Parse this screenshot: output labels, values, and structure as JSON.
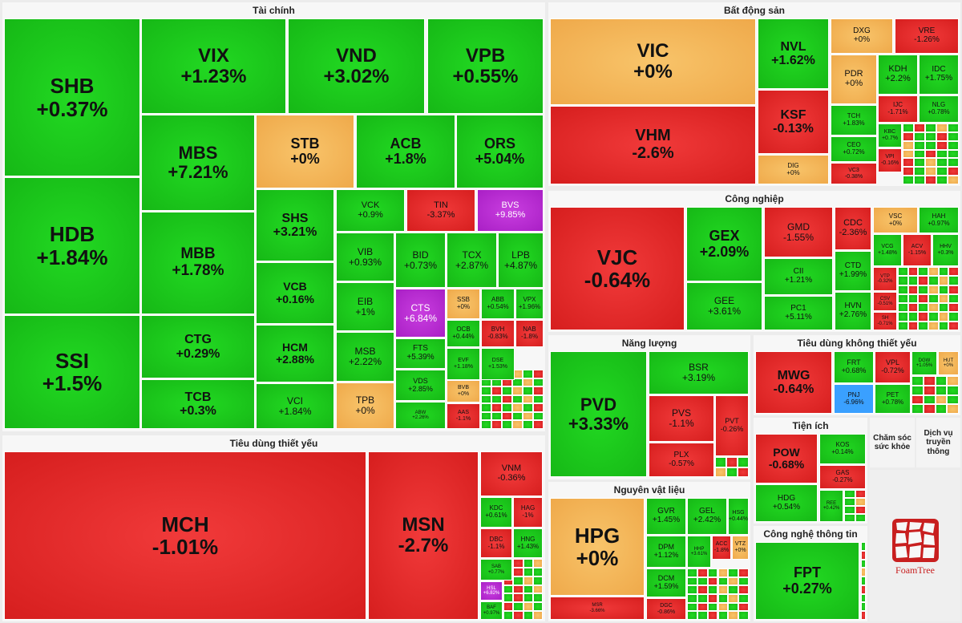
{
  "colors": {
    "up": "#16b816",
    "down": "#d61e1e",
    "flat": "#efa94a",
    "ceiling": "#a91fc5",
    "floor": "#3aa0ff"
  },
  "sectors": [
    {
      "id": "tai-chinh",
      "title": "Tài chính",
      "tiles": [
        {
          "t": "SHB",
          "v": "+0.37%",
          "c": "g"
        },
        {
          "t": "HDB",
          "v": "+1.84%",
          "c": "g"
        },
        {
          "t": "SSI",
          "v": "+1.5%",
          "c": "g"
        },
        {
          "t": "VIX",
          "v": "+1.23%",
          "c": "g"
        },
        {
          "t": "VND",
          "v": "+3.02%",
          "c": "g"
        },
        {
          "t": "VPB",
          "v": "+0.55%",
          "c": "g"
        },
        {
          "t": "MBS",
          "v": "+7.21%",
          "c": "g"
        },
        {
          "t": "STB",
          "v": "+0%",
          "c": "y"
        },
        {
          "t": "ACB",
          "v": "+1.8%",
          "c": "g"
        },
        {
          "t": "ORS",
          "v": "+5.04%",
          "c": "g"
        },
        {
          "t": "MBB",
          "v": "+1.78%",
          "c": "g"
        },
        {
          "t": "CTG",
          "v": "+0.29%",
          "c": "g"
        },
        {
          "t": "TCB",
          "v": "+0.3%",
          "c": "g"
        },
        {
          "t": "SHS",
          "v": "+3.21%",
          "c": "g"
        },
        {
          "t": "VCB",
          "v": "+0.16%",
          "c": "g"
        },
        {
          "t": "HCM",
          "v": "+2.88%",
          "c": "g"
        },
        {
          "t": "VCI",
          "v": "+1.84%",
          "c": "g"
        },
        {
          "t": "VCK",
          "v": "+0.9%",
          "c": "g"
        },
        {
          "t": "TIN",
          "v": "-3.37%",
          "c": "r"
        },
        {
          "t": "BVS",
          "v": "+9.85%",
          "c": "p"
        },
        {
          "t": "VIB",
          "v": "+0.93%",
          "c": "g"
        },
        {
          "t": "BID",
          "v": "+0.73%",
          "c": "g"
        },
        {
          "t": "TCX",
          "v": "+2.87%",
          "c": "g"
        },
        {
          "t": "LPB",
          "v": "+4.87%",
          "c": "g"
        },
        {
          "t": "EIB",
          "v": "+1%",
          "c": "g"
        },
        {
          "t": "CTS",
          "v": "+6.84%",
          "c": "p"
        },
        {
          "t": "SSB",
          "v": "+0%",
          "c": "y"
        },
        {
          "t": "ABB",
          "v": "+0.54%",
          "c": "g"
        },
        {
          "t": "VPX",
          "v": "+1.96%",
          "c": "g"
        },
        {
          "t": "OCB",
          "v": "+0.44%",
          "c": "g"
        },
        {
          "t": "BVH",
          "v": "-0.83%",
          "c": "r"
        },
        {
          "t": "NAB",
          "v": "-1.8%",
          "c": "r"
        },
        {
          "t": "MSB",
          "v": "+2.22%",
          "c": "g"
        },
        {
          "t": "FTS",
          "v": "+5.39%",
          "c": "g"
        },
        {
          "t": "TPB",
          "v": "+0%",
          "c": "y"
        },
        {
          "t": "VDS",
          "v": "+2.85%",
          "c": "g"
        },
        {
          "t": "BVB",
          "v": "+0%",
          "c": "y"
        },
        {
          "t": "AAS",
          "v": "-1.1%",
          "c": "r"
        },
        {
          "t": "EVF",
          "v": "+1.18%",
          "c": "g"
        },
        {
          "t": "DSE",
          "v": "+1.53%",
          "c": "g"
        },
        {
          "t": "ABW",
          "v": "+2.26%",
          "c": "g"
        }
      ]
    },
    {
      "id": "bat-dong-san",
      "title": "Bất động sản",
      "tiles": [
        {
          "t": "VIC",
          "v": "+0%",
          "c": "y"
        },
        {
          "t": "VHM",
          "v": "-2.6%",
          "c": "r"
        },
        {
          "t": "NVL",
          "v": "+1.62%",
          "c": "g"
        },
        {
          "t": "KSF",
          "v": "-0.13%",
          "c": "r"
        },
        {
          "t": "DIG",
          "v": "+0%",
          "c": "y"
        },
        {
          "t": "DXG",
          "v": "+0%",
          "c": "y"
        },
        {
          "t": "VRE",
          "v": "-1.26%",
          "c": "r"
        },
        {
          "t": "PDR",
          "v": "+0%",
          "c": "y"
        },
        {
          "t": "KDH",
          "v": "+2.2%",
          "c": "g"
        },
        {
          "t": "IDC",
          "v": "+1.75%",
          "c": "g"
        },
        {
          "t": "TCH",
          "v": "+1.83%",
          "c": "g"
        },
        {
          "t": "IJC",
          "v": "-1.71%",
          "c": "r"
        },
        {
          "t": "NLG",
          "v": "+0.78%",
          "c": "g"
        },
        {
          "t": "CEO",
          "v": "+0.72%",
          "c": "g"
        },
        {
          "t": "KBC",
          "v": "+0.7%",
          "c": "g"
        },
        {
          "t": "VPI",
          "v": "-0.16%",
          "c": "r"
        },
        {
          "t": "VC3",
          "v": "-0.38%",
          "c": "r"
        }
      ]
    },
    {
      "id": "cong-nghiep",
      "title": "Công nghiệp",
      "tiles": [
        {
          "t": "VJC",
          "v": "-0.64%",
          "c": "r"
        },
        {
          "t": "GEX",
          "v": "+2.09%",
          "c": "g"
        },
        {
          "t": "GEE",
          "v": "+3.61%",
          "c": "g"
        },
        {
          "t": "GMD",
          "v": "-1.55%",
          "c": "r"
        },
        {
          "t": "CII",
          "v": "+1.21%",
          "c": "g"
        },
        {
          "t": "PC1",
          "v": "+5.11%",
          "c": "g"
        },
        {
          "t": "CDC",
          "v": "-2.36%",
          "c": "r"
        },
        {
          "t": "CTD",
          "v": "+1.99%",
          "c": "g"
        },
        {
          "t": "HVN",
          "v": "+2.76%",
          "c": "g"
        },
        {
          "t": "VSC",
          "v": "+0%",
          "c": "y"
        },
        {
          "t": "HAH",
          "v": "+0.97%",
          "c": "g"
        },
        {
          "t": "VCG",
          "v": "+1.48%",
          "c": "g"
        },
        {
          "t": "ACV",
          "v": "-1.15%",
          "c": "r"
        },
        {
          "t": "HHV",
          "v": "+0.3%",
          "c": "g"
        },
        {
          "t": "VTP",
          "v": "-0.32%",
          "c": "r"
        },
        {
          "t": "CSV",
          "v": "-0.51%",
          "c": "r"
        },
        {
          "t": "SH",
          "v": "-0.71%",
          "c": "r"
        }
      ]
    },
    {
      "id": "nang-luong",
      "title": "Năng lượng",
      "tiles": [
        {
          "t": "PVD",
          "v": "+3.33%",
          "c": "g"
        },
        {
          "t": "BSR",
          "v": "+3.19%",
          "c": "g"
        },
        {
          "t": "PVS",
          "v": "-1.1%",
          "c": "r"
        },
        {
          "t": "PVT",
          "v": "-0.26%",
          "c": "r"
        },
        {
          "t": "PLX",
          "v": "-0.57%",
          "c": "r"
        }
      ]
    },
    {
      "id": "tieu-dung-khong-thiet-yeu",
      "title": "Tiêu dùng không thiết yếu",
      "tiles": [
        {
          "t": "MWG",
          "v": "-0.64%",
          "c": "r"
        },
        {
          "t": "FRT",
          "v": "+0.68%",
          "c": "g"
        },
        {
          "t": "VPL",
          "v": "-0.72%",
          "c": "r"
        },
        {
          "t": "PNJ",
          "v": "-6.96%",
          "c": "b"
        },
        {
          "t": "PET",
          "v": "+0.78%",
          "c": "g"
        },
        {
          "t": "DGW",
          "v": "+1.05%",
          "c": "g"
        },
        {
          "t": "HUT",
          "v": "+0%",
          "c": "y"
        }
      ]
    },
    {
      "id": "tien-ich",
      "title": "Tiện ích",
      "tiles": [
        {
          "t": "POW",
          "v": "-0.68%",
          "c": "r"
        },
        {
          "t": "KOS",
          "v": "+0.14%",
          "c": "g"
        },
        {
          "t": "GAS",
          "v": "-0.27%",
          "c": "r"
        },
        {
          "t": "HDG",
          "v": "+0.54%",
          "c": "g"
        },
        {
          "t": "REE",
          "v": "+0.42%",
          "c": "g"
        }
      ]
    },
    {
      "id": "tieu-dung-thiet-yeu",
      "title": "Tiêu dùng thiết yếu",
      "tiles": [
        {
          "t": "MCH",
          "v": "-1.01%",
          "c": "r"
        },
        {
          "t": "MSN",
          "v": "-2.7%",
          "c": "r"
        },
        {
          "t": "VNM",
          "v": "-0.36%",
          "c": "r"
        },
        {
          "t": "KDC",
          "v": "+0.61%",
          "c": "g"
        },
        {
          "t": "HAG",
          "v": "-1%",
          "c": "r"
        },
        {
          "t": "DBC",
          "v": "-1.1%",
          "c": "r"
        },
        {
          "t": "HNG",
          "v": "+1.43%",
          "c": "g"
        },
        {
          "t": "SAB",
          "v": "+0.77%",
          "c": "g"
        },
        {
          "t": "HSL",
          "v": "+6.82%",
          "c": "p"
        },
        {
          "t": "BAF",
          "v": "+0.97%",
          "c": "g"
        }
      ]
    },
    {
      "id": "nguyen-vat-lieu",
      "title": "Nguyên vật liệu",
      "tiles": [
        {
          "t": "HPG",
          "v": "+0%",
          "c": "y"
        },
        {
          "t": "GVR",
          "v": "+1.45%",
          "c": "g"
        },
        {
          "t": "GEL",
          "v": "+2.42%",
          "c": "g"
        },
        {
          "t": "HSG",
          "v": "+0.44%",
          "c": "g"
        },
        {
          "t": "DPM",
          "v": "+1.12%",
          "c": "g"
        },
        {
          "t": "HHP",
          "v": "+3.61%",
          "c": "g"
        },
        {
          "t": "ACC",
          "v": "-1.8%",
          "c": "r"
        },
        {
          "t": "VTZ",
          "v": "+0%",
          "c": "y"
        },
        {
          "t": "DCM",
          "v": "+1.59%",
          "c": "g"
        },
        {
          "t": "DGC",
          "v": "-0.86%",
          "c": "r"
        },
        {
          "t": "MSR",
          "v": "-3.66%",
          "c": "r"
        }
      ]
    },
    {
      "id": "cong-nghe-thong-tin",
      "title": "Công nghệ thông tin",
      "tiles": [
        {
          "t": "FPT",
          "v": "+0.27%",
          "c": "g"
        }
      ]
    }
  ],
  "other_sectors": [
    {
      "id": "cham-soc-suc-khoe",
      "title": "Chăm sóc sức khỏe"
    },
    {
      "id": "dich-vu-truyen-thong",
      "title": "Dịch vụ truyền thông"
    }
  ],
  "logo": {
    "text": "FoamTree",
    "color": "#c81f1f"
  }
}
